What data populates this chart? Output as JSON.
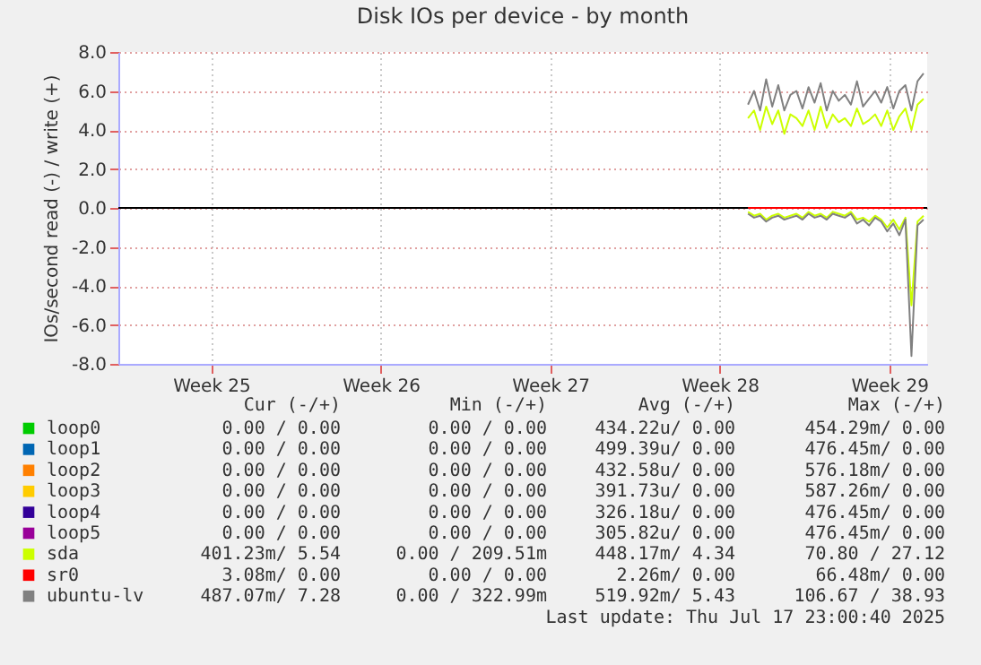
{
  "chart_data": {
    "type": "line",
    "title": "Disk IOs per device - by month",
    "ylabel": "IOs/second read (-) / write (+)",
    "xlim": [
      "2025-06-14T16:00",
      "2025-07-18T01:36"
    ],
    "xticks": [
      {
        "value": "2025-06-18T12:00",
        "label": "Week 25"
      },
      {
        "value": "2025-06-25T12:00",
        "label": "Week 26"
      },
      {
        "value": "2025-07-02T12:00",
        "label": "Week 27"
      },
      {
        "value": "2025-07-09T12:00",
        "label": "Week 28"
      },
      {
        "value": "2025-07-16T12:00",
        "label": "Week 29"
      }
    ],
    "ylim": [
      -8,
      8
    ],
    "yticks": [
      {
        "value": -8,
        "label": "-8.0"
      },
      {
        "value": -6,
        "label": "-6.0"
      },
      {
        "value": -4,
        "label": "-4.0"
      },
      {
        "value": -2,
        "label": "-2.0"
      },
      {
        "value": 0,
        "label": "0.0"
      },
      {
        "value": 2,
        "label": "2.0"
      },
      {
        "value": 4,
        "label": "4.0"
      },
      {
        "value": 6,
        "label": "6.0"
      },
      {
        "value": 8,
        "label": "8.0"
      }
    ],
    "grid": true,
    "legend": "bottom",
    "ref_lines": [
      {
        "axis": "y",
        "value": 0,
        "color": "#000000"
      }
    ],
    "series": [
      {
        "name": "loop0",
        "color": "#00cc00"
      },
      {
        "name": "loop1",
        "color": "#0066b3"
      },
      {
        "name": "loop2",
        "color": "#ff8000"
      },
      {
        "name": "loop3",
        "color": "#ffcc00"
      },
      {
        "name": "loop4",
        "color": "#330099"
      },
      {
        "name": "loop5",
        "color": "#990099"
      },
      {
        "name": "sda",
        "color": "#ccff00",
        "x": [
          "2025-07-10T16:00",
          "2025-07-10T22:00",
          "2025-07-11T04:00",
          "2025-07-11T10:00",
          "2025-07-11T16:00",
          "2025-07-11T22:00",
          "2025-07-12T04:00",
          "2025-07-12T10:00",
          "2025-07-12T16:00",
          "2025-07-12T22:00",
          "2025-07-13T04:00",
          "2025-07-13T10:00",
          "2025-07-13T16:00",
          "2025-07-13T22:00",
          "2025-07-14T04:00",
          "2025-07-14T10:00",
          "2025-07-14T16:00",
          "2025-07-14T22:00",
          "2025-07-15T04:00",
          "2025-07-15T10:00",
          "2025-07-15T16:00",
          "2025-07-15T22:00",
          "2025-07-16T04:00",
          "2025-07-16T10:00",
          "2025-07-16T16:00",
          "2025-07-16T22:00",
          "2025-07-17T04:00",
          "2025-07-17T10:00",
          "2025-07-17T16:00",
          "2025-07-17T22:00"
        ],
        "values": [
          4.6,
          5.0,
          4.0,
          5.2,
          4.3,
          5.0,
          3.8,
          4.8,
          4.6,
          4.2,
          5.0,
          4.0,
          5.2,
          4.1,
          4.8,
          4.4,
          4.6,
          4.2,
          5.1,
          4.3,
          4.5,
          4.8,
          4.2,
          5.0,
          4.0,
          4.7,
          5.1,
          4.0,
          5.3,
          5.6
        ]
      },
      {
        "name": "sr0",
        "color": "#ff0000",
        "x": [
          "2025-07-10T16:00",
          "2025-07-17T22:00"
        ],
        "values": [
          0,
          0
        ]
      },
      {
        "name": "ubuntu-lv",
        "color": "#808080",
        "x": [
          "2025-07-10T16:00",
          "2025-07-10T22:00",
          "2025-07-11T04:00",
          "2025-07-11T10:00",
          "2025-07-11T16:00",
          "2025-07-11T22:00",
          "2025-07-12T04:00",
          "2025-07-12T10:00",
          "2025-07-12T16:00",
          "2025-07-12T22:00",
          "2025-07-13T04:00",
          "2025-07-13T10:00",
          "2025-07-13T16:00",
          "2025-07-13T22:00",
          "2025-07-14T04:00",
          "2025-07-14T10:00",
          "2025-07-14T16:00",
          "2025-07-14T22:00",
          "2025-07-15T04:00",
          "2025-07-15T10:00",
          "2025-07-15T16:00",
          "2025-07-15T22:00",
          "2025-07-16T04:00",
          "2025-07-16T10:00",
          "2025-07-16T16:00",
          "2025-07-16T22:00",
          "2025-07-17T04:00",
          "2025-07-17T10:00",
          "2025-07-17T16:00",
          "2025-07-17T22:00"
        ],
        "values": [
          5.3,
          6.0,
          5.0,
          6.6,
          5.2,
          6.3,
          5.0,
          5.8,
          6.0,
          5.1,
          6.2,
          5.4,
          6.4,
          5.0,
          6.0,
          5.5,
          5.8,
          5.3,
          6.5,
          5.2,
          5.6,
          6.0,
          5.4,
          6.2,
          5.1,
          6.0,
          6.3,
          5.0,
          6.5,
          6.9
        ]
      },
      {
        "color": "#ccff00",
        "x": [
          "2025-07-10T16:00",
          "2025-07-10T22:00",
          "2025-07-11T04:00",
          "2025-07-11T10:00",
          "2025-07-11T16:00",
          "2025-07-11T22:00",
          "2025-07-12T04:00",
          "2025-07-12T10:00",
          "2025-07-12T16:00",
          "2025-07-12T22:00",
          "2025-07-13T04:00",
          "2025-07-13T10:00",
          "2025-07-13T16:00",
          "2025-07-13T22:00",
          "2025-07-14T04:00",
          "2025-07-14T10:00",
          "2025-07-14T16:00",
          "2025-07-14T22:00",
          "2025-07-15T04:00",
          "2025-07-15T10:00",
          "2025-07-15T16:00",
          "2025-07-15T22:00",
          "2025-07-16T04:00",
          "2025-07-16T10:00",
          "2025-07-16T16:00",
          "2025-07-16T22:00",
          "2025-07-17T04:00",
          "2025-07-17T10:00",
          "2025-07-17T16:00",
          "2025-07-17T22:00"
        ],
        "values": [
          -0.2,
          -0.4,
          -0.3,
          -0.6,
          -0.4,
          -0.3,
          -0.5,
          -0.4,
          -0.3,
          -0.5,
          -0.2,
          -0.4,
          -0.3,
          -0.5,
          -0.2,
          -0.3,
          -0.4,
          -0.2,
          -0.6,
          -0.5,
          -0.7,
          -0.4,
          -0.6,
          -1.0,
          -0.6,
          -1.1,
          -0.5,
          -5.0,
          -0.7,
          -0.4
        ]
      },
      {
        "color": "#808080",
        "x": [
          "2025-07-10T16:00",
          "2025-07-10T22:00",
          "2025-07-11T04:00",
          "2025-07-11T10:00",
          "2025-07-11T16:00",
          "2025-07-11T22:00",
          "2025-07-12T04:00",
          "2025-07-12T10:00",
          "2025-07-12T16:00",
          "2025-07-12T22:00",
          "2025-07-13T04:00",
          "2025-07-13T10:00",
          "2025-07-13T16:00",
          "2025-07-13T22:00",
          "2025-07-14T04:00",
          "2025-07-14T10:00",
          "2025-07-14T16:00",
          "2025-07-14T22:00",
          "2025-07-15T04:00",
          "2025-07-15T10:00",
          "2025-07-15T16:00",
          "2025-07-15T22:00",
          "2025-07-16T04:00",
          "2025-07-16T10:00",
          "2025-07-16T16:00",
          "2025-07-16T22:00",
          "2025-07-17T04:00",
          "2025-07-17T10:00",
          "2025-07-17T16:00",
          "2025-07-17T22:00"
        ],
        "values": [
          -0.3,
          -0.5,
          -0.4,
          -0.7,
          -0.5,
          -0.4,
          -0.6,
          -0.5,
          -0.4,
          -0.6,
          -0.3,
          -0.5,
          -0.4,
          -0.6,
          -0.3,
          -0.4,
          -0.5,
          -0.3,
          -0.8,
          -0.6,
          -0.9,
          -0.5,
          -0.7,
          -1.2,
          -0.8,
          -1.4,
          -0.6,
          -7.6,
          -0.9,
          -0.6
        ]
      }
    ],
    "annotations": [
      "Cur (-/+)",
      "Min (-/+)",
      "Avg (-/+)",
      "Max (-/+)",
      "0.00 / 0.00",
      "0.00 / 0.00",
      "434.22u/ 0.00",
      "454.29m/ 0.00",
      "0.00 / 0.00",
      "0.00 / 0.00",
      "499.39u/ 0.00",
      "476.45m/ 0.00",
      "0.00 / 0.00",
      "0.00 / 0.00",
      "432.58u/ 0.00",
      "576.18m/ 0.00",
      "0.00 / 0.00",
      "0.00 / 0.00",
      "391.73u/ 0.00",
      "587.26m/ 0.00",
      "0.00 / 0.00",
      "0.00 / 0.00",
      "326.18u/ 0.00",
      "476.45m/ 0.00",
      "0.00 / 0.00",
      "0.00 / 0.00",
      "305.82u/ 0.00",
      "476.45m/ 0.00",
      "401.23m/ 5.54",
      "0.00 / 209.51m",
      "448.17m/ 4.34",
      "70.80 / 27.12",
      "3.08m/ 0.00",
      "0.00 / 0.00",
      "2.26m/ 0.00",
      "66.48m/ 0.00",
      "487.07m/ 7.28",
      "0.00 / 322.99m",
      "519.92m/ 5.43",
      "106.67 / 38.93",
      "Last update: Thu Jul 17 23:00:40 2025"
    ]
  }
}
